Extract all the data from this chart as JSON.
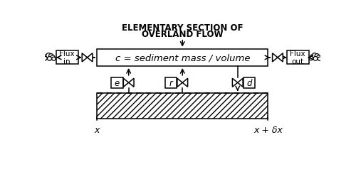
{
  "title_line1": "ELEMENTARY SECTION OF",
  "title_line2": "OVERLAND FLOW",
  "center_box_text": "c = sediment mass / volume",
  "flux_in_label": "Flux\nin",
  "flux_out_label": "Flux\nout",
  "e_label": "e",
  "r_label": "r",
  "d_label": "d",
  "x_label": "x",
  "xdx_label": "x + δx",
  "bg_color": "#ffffff",
  "line_color": "#000000",
  "hatch_pattern": "////",
  "font_size_title": 8.5,
  "font_size_center": 9.5,
  "font_size_labels": 8.5,
  "font_size_small": 7.5,
  "font_size_axis": 9
}
